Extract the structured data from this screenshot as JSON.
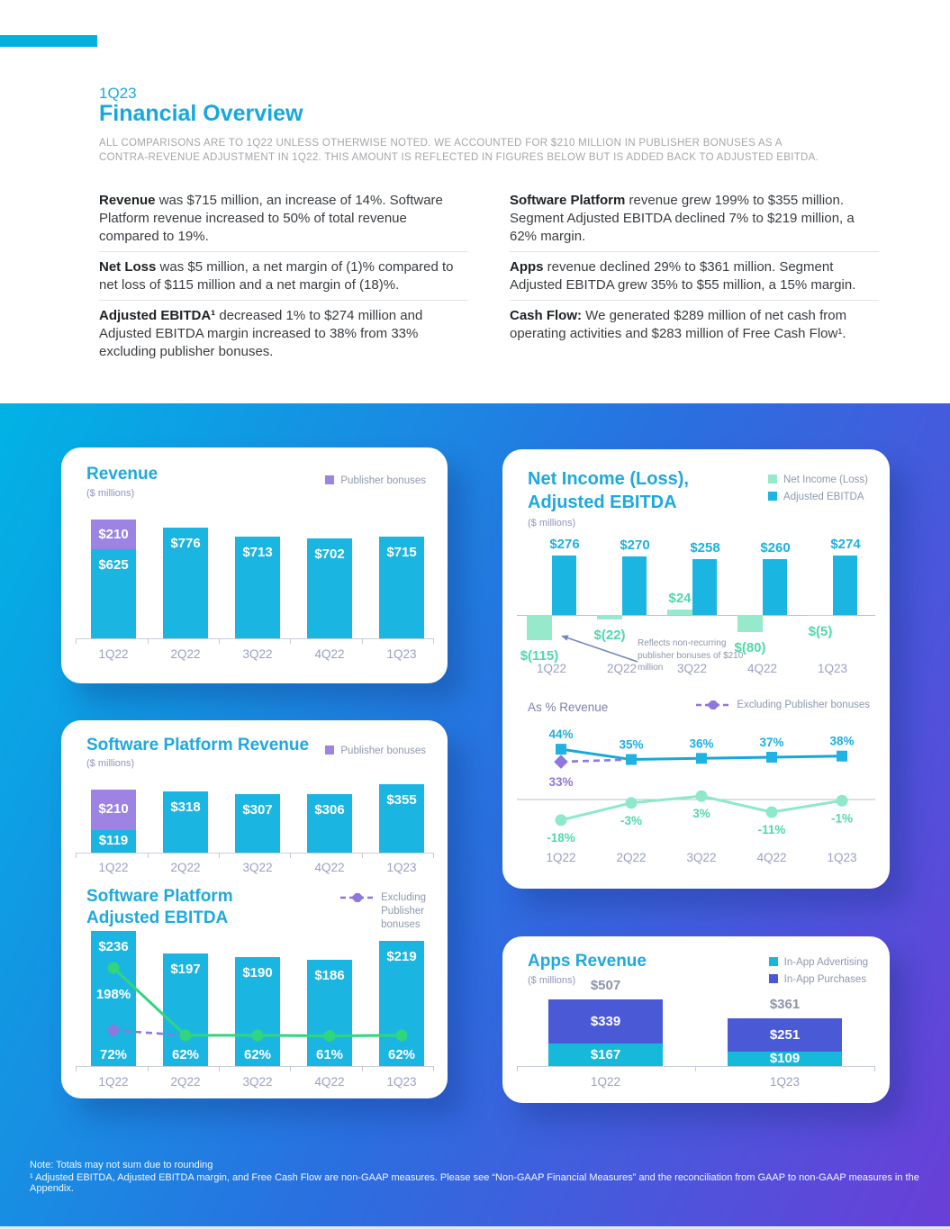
{
  "accent_color": "#00b1e0",
  "header": {
    "kicker": "1Q23",
    "title": "Financial Overview",
    "disclaimer": "ALL COMPARISONS ARE TO 1Q22 UNLESS OTHERWISE NOTED. WE ACCOUNTED FOR $210 MILLION IN PUBLISHER BONUSES AS A CONTRA-REVENUE ADJUSTMENT IN 1Q22. THIS AMOUNT IS REFLECTED IN FIGURES BELOW BUT IS ADDED BACK TO ADJUSTED EBITDA."
  },
  "highlights": [
    {
      "lead": "Revenue",
      "text": " was $715 million, an increase of 14%. Software Platform revenue increased to 50% of total revenue compared to 19%."
    },
    {
      "lead": "Software Platform",
      "text": " revenue grew 199% to $355 million. Segment Adjusted EBITDA declined 7% to $219 million, a 62% margin."
    },
    {
      "lead": "Net Loss",
      "text": " was $5 million, a net margin of (1)% compared to net loss of $115 million and a net margin of (18)%."
    },
    {
      "lead": "Apps",
      "text": " revenue declined 29% to $361 million. Segment Adjusted EBITDA grew 35% to $55 million, a 15% margin."
    },
    {
      "lead": "Adjusted EBITDA¹",
      "text": " decreased 1% to $274 million and Adjusted EBITDA margin increased to 38% from 33% excluding publisher bonuses."
    },
    {
      "lead": "Cash Flow:",
      "text": " We generated $289 million of net cash from operating activities and $283 million of Free Cash Flow¹."
    }
  ],
  "footer": {
    "note": "Note: Totals may not sum due to rounding",
    "footnote": "¹ Adjusted EBITDA, Adjusted EBITDA margin, and Free Cash Flow are non-GAAP measures. Please see “Non-GAAP Financial Measures” and the reconciliation from GAAP to non-GAAP measures in the Appendix."
  },
  "chart_data": [
    {
      "id": "revenue",
      "type": "bar",
      "title": "Revenue",
      "subtitle": "($ millions)",
      "ylabel": "$ millions",
      "legend": [
        {
          "label": "Publisher bonuses",
          "swatch": "square",
          "color": "#9d84e4"
        }
      ],
      "categories": [
        "1Q22",
        "2Q22",
        "3Q22",
        "4Q22",
        "1Q23"
      ],
      "series": [
        {
          "name": "Revenue",
          "color": "#1bb5e2",
          "values": [
            625,
            776,
            713,
            702,
            715
          ],
          "labels": [
            "$625",
            "$776",
            "$713",
            "$702",
            "$715"
          ]
        },
        {
          "name": "Publisher bonuses",
          "color": "#9d84e4",
          "values": [
            210,
            0,
            0,
            0,
            0
          ],
          "labels": [
            "$210",
            "",
            "",
            "",
            ""
          ]
        }
      ]
    },
    {
      "id": "net-income-adjusted-ebitda",
      "type": "bar",
      "title": "Net Income (Loss),\nAdjusted EBITDA",
      "subtitle": "($ millions)",
      "legend": [
        {
          "label": "Net Income (Loss)",
          "swatch": "square",
          "color": "#97e9cb"
        },
        {
          "label": "Adjusted EBITDA",
          "swatch": "square",
          "color": "#1bb5e2"
        }
      ],
      "categories": [
        "1Q22",
        "2Q22",
        "3Q22",
        "4Q22",
        "1Q23"
      ],
      "series": [
        {
          "name": "Net Income (Loss)",
          "color": "#97e9cb",
          "values": [
            -115,
            -22,
            24,
            -80,
            -5
          ],
          "labels": [
            "$(115)",
            "$(22)",
            "$24",
            "$(80)",
            "$(5)"
          ]
        },
        {
          "name": "Adjusted EBITDA",
          "color": "#1bb5e2",
          "values": [
            276,
            270,
            258,
            260,
            274
          ],
          "labels": [
            "$276",
            "$270",
            "$258",
            "$260",
            "$274"
          ]
        }
      ],
      "annotation": "Reflects non-recurring\npublisher bonuses of $210\nmillion"
    },
    {
      "id": "as-pct-revenue",
      "type": "line",
      "title": "As % Revenue",
      "legend": [
        {
          "label": "Excluding Publisher bonuses",
          "swatch": "dash-diamond",
          "color": "#9076dd"
        }
      ],
      "categories": [
        "1Q22",
        "2Q22",
        "3Q22",
        "4Q22",
        "1Q23"
      ],
      "series": [
        {
          "name": "Adjusted EBITDA margin",
          "color": "#14a9da",
          "marker": "square",
          "values": [
            44,
            35,
            36,
            37,
            38
          ],
          "labels": [
            "44%",
            "35%",
            "36%",
            "37%",
            "38%"
          ]
        },
        {
          "name": "Net income margin",
          "color": "#8ee8ca",
          "marker": "circle",
          "values": [
            -18,
            -3,
            3,
            -11,
            -1
          ],
          "labels": [
            "-18%",
            "-3%",
            "3%",
            "-11%",
            "-1%"
          ]
        },
        {
          "name": "Excluding Publisher bonuses",
          "color": "#9076dd",
          "marker": "diamond",
          "values": [
            33,
            null,
            null,
            null,
            null
          ],
          "labels": [
            "33%",
            "",
            "",
            "",
            ""
          ]
        }
      ]
    },
    {
      "id": "software-platform-revenue",
      "type": "bar",
      "title": "Software Platform Revenue",
      "subtitle": "($ millions)",
      "legend": [
        {
          "label": "Publisher bonuses",
          "swatch": "square",
          "color": "#9d84e4"
        }
      ],
      "categories": [
        "1Q22",
        "2Q22",
        "3Q22",
        "4Q22",
        "1Q23"
      ],
      "series": [
        {
          "name": "Software Platform Revenue",
          "color": "#1bb5e2",
          "values": [
            119,
            318,
            307,
            306,
            355
          ],
          "labels": [
            "$119",
            "$318",
            "$307",
            "$306",
            "$355"
          ]
        },
        {
          "name": "Publisher bonuses",
          "color": "#9d84e4",
          "values": [
            210,
            0,
            0,
            0,
            0
          ],
          "labels": [
            "$210",
            "",
            "",
            "",
            ""
          ]
        }
      ]
    },
    {
      "id": "software-platform-adjusted-ebitda",
      "type": "bar+line",
      "title": "Software Platform\nAdjusted EBITDA",
      "legend": [
        {
          "label": "Excluding\nPublisher\nbonuses",
          "swatch": "dash-diamond",
          "color": "#9076dd"
        }
      ],
      "categories": [
        "1Q22",
        "2Q22",
        "3Q22",
        "4Q22",
        "1Q23"
      ],
      "bars": {
        "name": "Segment Adjusted EBITDA",
        "color": "#1bb5e2",
        "values": [
          236,
          197,
          190,
          186,
          219
        ],
        "labels": [
          "$236",
          "$197",
          "$190",
          "$186",
          "$219"
        ]
      },
      "margin_line": {
        "name": "Adjusted EBITDA margin",
        "color": "#30d57d",
        "values": [
          198,
          62,
          62,
          61,
          62
        ],
        "peak_label": "198%"
      },
      "excluding_point": {
        "name": "Excluding Publisher bonuses",
        "color": "#9076dd",
        "value": 72
      },
      "margin_labels": [
        "72%",
        "62%",
        "62%",
        "61%",
        "62%"
      ]
    },
    {
      "id": "apps-revenue",
      "type": "bar",
      "title": "Apps Revenue",
      "subtitle": "($ millions)",
      "legend": [
        {
          "label": "In-App Advertising",
          "swatch": "square",
          "color": "#17b9da"
        },
        {
          "label": "In-App Purchases",
          "swatch": "square",
          "color": "#4a5ad6"
        }
      ],
      "categories": [
        "1Q22",
        "1Q23"
      ],
      "series": [
        {
          "name": "In-App Advertising",
          "color": "#17b9da",
          "values": [
            167,
            109
          ],
          "labels": [
            "$167",
            "$109"
          ]
        },
        {
          "name": "In-App Purchases",
          "color": "#4a5ad6",
          "values": [
            339,
            251
          ],
          "labels": [
            "$339",
            "$251"
          ]
        }
      ],
      "totals": [
        "$507",
        "$361"
      ]
    }
  ]
}
